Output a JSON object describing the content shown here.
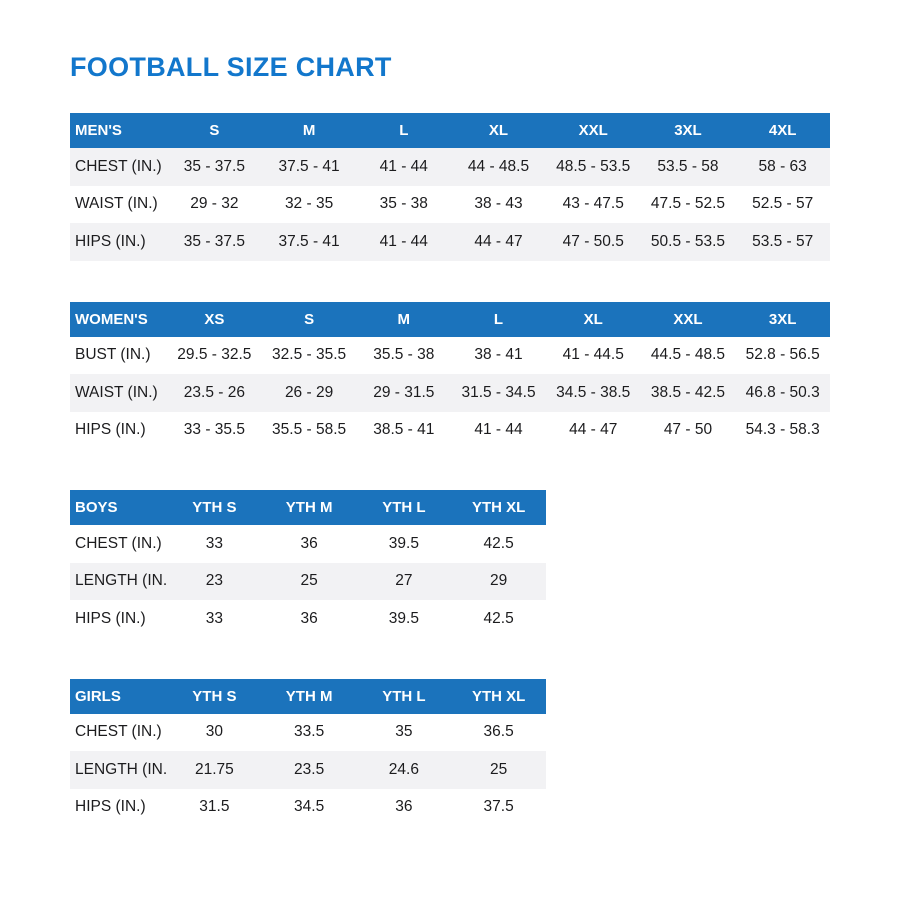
{
  "page": {
    "title": "FOOTBALL SIZE CHART",
    "colors": {
      "title": "#1277CC",
      "header_bg": "#1B73BC",
      "header_text": "#FFFFFF",
      "stripe": "#F2F2F4",
      "text": "#1C1C1E"
    }
  },
  "chart_data": [
    {
      "type": "table",
      "id": "mens",
      "wide": true,
      "shaded_rows": [
        0,
        2
      ],
      "columns": [
        "MEN'S",
        "S",
        "M",
        "L",
        "XL",
        "XXL",
        "3XL",
        "4XL"
      ],
      "rows": [
        [
          "CHEST (IN.)",
          "35 - 37.5",
          "37.5 - 41",
          "41 - 44",
          "44 - 48.5",
          "48.5 - 53.5",
          "53.5 - 58",
          "58 - 63"
        ],
        [
          "WAIST (IN.)",
          "29 - 32",
          "32 - 35",
          "35 - 38",
          "38 - 43",
          "43 - 47.5",
          "47.5 - 52.5",
          "52.5 - 57"
        ],
        [
          "HIPS (IN.)",
          "35 - 37.5",
          "37.5 - 41",
          "41 - 44",
          "44 - 47",
          "47 - 50.5",
          "50.5 - 53.5",
          "53.5 - 57"
        ]
      ]
    },
    {
      "type": "table",
      "id": "womens",
      "wide": true,
      "shaded_rows": [
        1
      ],
      "columns": [
        "WOMEN'S",
        "XS",
        "S",
        "M",
        "L",
        "XL",
        "XXL",
        "3XL"
      ],
      "rows": [
        [
          "BUST (IN.)",
          "29.5 - 32.5",
          "32.5 - 35.5",
          "35.5 - 38",
          "38 - 41",
          "41 - 44.5",
          "44.5 - 48.5",
          "52.8 - 56.5"
        ],
        [
          "WAIST (IN.)",
          "23.5 - 26",
          "26 - 29",
          "29 - 31.5",
          "31.5 - 34.5",
          "34.5 - 38.5",
          "38.5 - 42.5",
          "46.8 - 50.3"
        ],
        [
          "HIPS (IN.)",
          "33 - 35.5",
          "35.5 - 58.5",
          "38.5 - 41",
          "41 - 44",
          "44 - 47",
          "47 - 50",
          "54.3 - 58.3"
        ]
      ]
    },
    {
      "type": "table",
      "id": "boys",
      "wide": false,
      "shaded_rows": [
        1
      ],
      "columns": [
        "BOYS",
        "YTH S",
        "YTH M",
        "YTH L",
        "YTH XL"
      ],
      "rows": [
        [
          "CHEST (IN.)",
          "33",
          "36",
          "39.5",
          "42.5"
        ],
        [
          "LENGTH (IN.)",
          "23",
          "25",
          "27",
          "29"
        ],
        [
          "HIPS (IN.)",
          "33",
          "36",
          "39.5",
          "42.5"
        ]
      ]
    },
    {
      "type": "table",
      "id": "girls",
      "wide": false,
      "shaded_rows": [
        1
      ],
      "columns": [
        "GIRLS",
        "YTH S",
        "YTH M",
        "YTH L",
        "YTH XL"
      ],
      "rows": [
        [
          "CHEST (IN.)",
          "30",
          "33.5",
          "35",
          "36.5"
        ],
        [
          "LENGTH (IN.)",
          "21.75",
          "23.5",
          "24.6",
          "25"
        ],
        [
          "HIPS (IN.)",
          "31.5",
          "34.5",
          "36",
          "37.5"
        ]
      ]
    }
  ]
}
